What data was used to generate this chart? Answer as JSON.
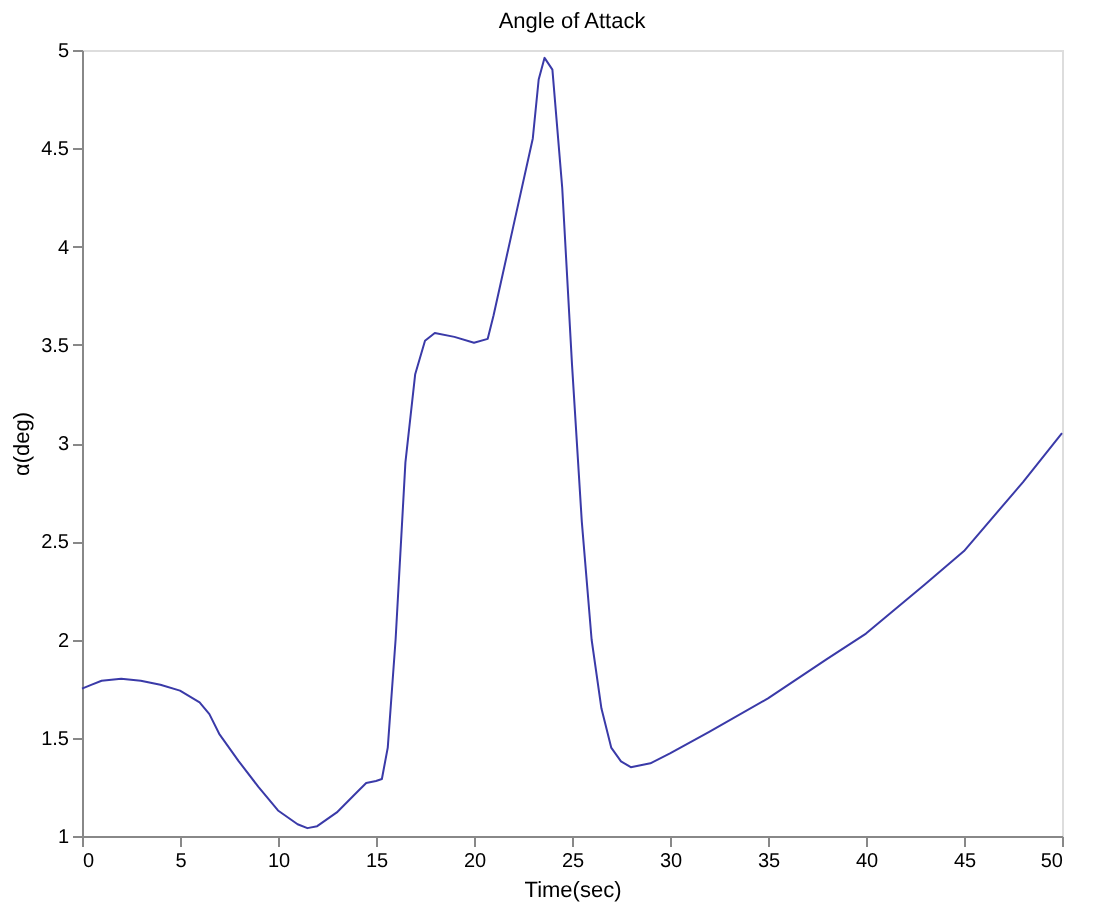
{
  "chart_data": {
    "type": "line",
    "title": "Angle of Attack",
    "xlabel": "Time(sec)",
    "ylabel": "α(deg)",
    "xlim": [
      0,
      50
    ],
    "xticks": [
      0,
      5,
      10,
      15,
      20,
      25,
      30,
      35,
      40,
      45,
      50
    ],
    "ylim": [
      1,
      5
    ],
    "yticks": [
      1,
      1.5,
      2,
      2.5,
      3,
      3.5,
      4,
      4.5,
      5
    ],
    "grid": false,
    "line_style": "solid",
    "series": [
      {
        "color": "#3a3aa8",
        "x": [
          0,
          0.5,
          1,
          2,
          3,
          4,
          5,
          6,
          6.5,
          7,
          8,
          9,
          10,
          11,
          11.5,
          12,
          13,
          14,
          14.5,
          15,
          15.3,
          15.6,
          16,
          16.5,
          17,
          17.5,
          18,
          19,
          20,
          20.7,
          21,
          22,
          23,
          23.3,
          23.6,
          24,
          24.5,
          25,
          25.5,
          26,
          26.5,
          27,
          27.5,
          28,
          29,
          30,
          32,
          35,
          38,
          40,
          43,
          45,
          48,
          50
        ],
        "values": [
          1.75,
          1.77,
          1.79,
          1.8,
          1.79,
          1.77,
          1.74,
          1.68,
          1.62,
          1.52,
          1.38,
          1.25,
          1.13,
          1.06,
          1.04,
          1.05,
          1.12,
          1.22,
          1.27,
          1.28,
          1.29,
          1.45,
          2.0,
          2.9,
          3.35,
          3.52,
          3.56,
          3.54,
          3.51,
          3.53,
          3.65,
          4.1,
          4.55,
          4.85,
          4.96,
          4.9,
          4.3,
          3.4,
          2.6,
          2.0,
          1.65,
          1.45,
          1.38,
          1.35,
          1.37,
          1.42,
          1.53,
          1.7,
          1.9,
          2.03,
          2.28,
          2.45,
          2.8,
          3.05
        ]
      }
    ]
  }
}
